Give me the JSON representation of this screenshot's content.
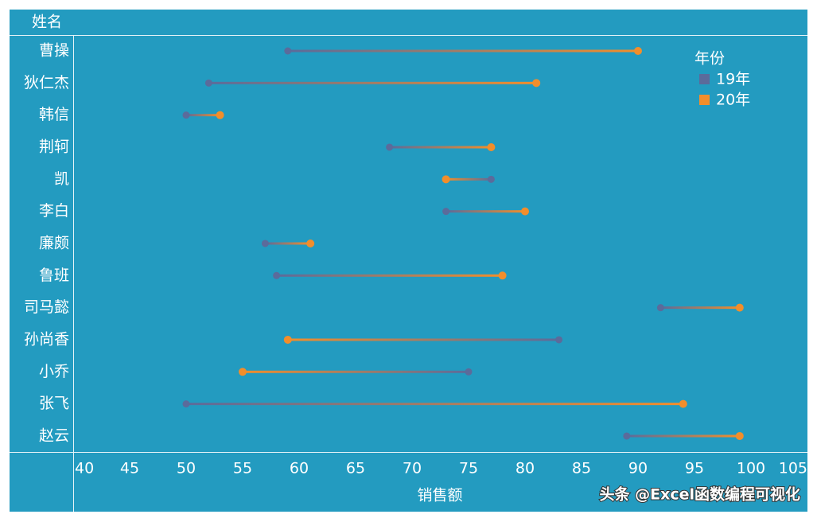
{
  "chart_data": {
    "type": "dumbbell",
    "y_label": "姓名",
    "x_label": "销售额",
    "legend_title": "年份",
    "categories": [
      "曹操",
      "狄仁杰",
      "韩信",
      "荆轲",
      "凯",
      "李白",
      "廉颇",
      "鲁班",
      "司马懿",
      "孙尚香",
      "小乔",
      "张飞",
      "赵云"
    ],
    "series": [
      {
        "name": "19年",
        "color": "#5b6b9b",
        "values": [
          59,
          52,
          50,
          68,
          77,
          73,
          57,
          58,
          92,
          83,
          75,
          50,
          89
        ]
      },
      {
        "name": "20年",
        "color": "#f28e2b",
        "values": [
          90,
          81,
          53,
          77,
          73,
          80,
          61,
          78,
          99,
          59,
          55,
          94,
          99
        ]
      }
    ],
    "xlim": [
      40,
      105
    ],
    "xticks": [
      40,
      45,
      50,
      55,
      60,
      65,
      70,
      75,
      80,
      85,
      90,
      95,
      100,
      105
    ],
    "watermark": "头条 @Excel函数编程可视化"
  }
}
